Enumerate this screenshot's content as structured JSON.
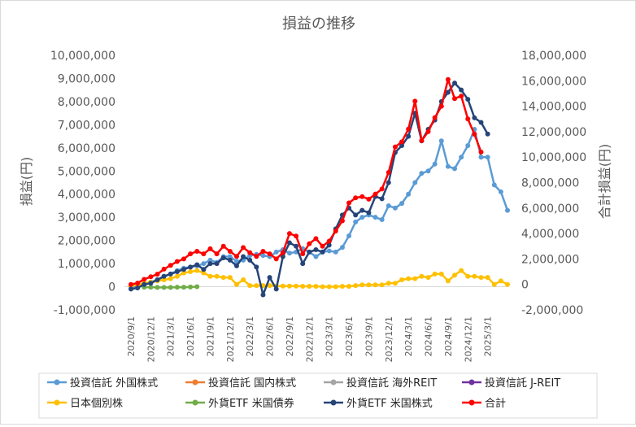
{
  "chart_data": {
    "type": "line",
    "title": "損益の推移",
    "ylabel": "損益(円)",
    "y2label": "合計損益(円)",
    "ylim": [
      -1000000,
      10000000
    ],
    "y2lim": [
      -2000000,
      18000000
    ],
    "yticks": [
      "-1,000,000",
      "0",
      "1,000,000",
      "2,000,000",
      "3,000,000",
      "4,000,000",
      "5,000,000",
      "6,000,000",
      "7,000,000",
      "8,000,000",
      "9,000,000",
      "10,000,000"
    ],
    "y2ticks": [
      "-2,000,000",
      "0",
      "2,000,000",
      "4,000,000",
      "6,000,000",
      "8,000,000",
      "10,000,000",
      "12,000,000",
      "14,000,000",
      "16,000,000",
      "18,000,000"
    ],
    "xticks": [
      "2020/9/1",
      "2020/12/1",
      "2021/3/1",
      "2021/6/1",
      "2021/9/1",
      "2021/12/1",
      "2022/3/1",
      "2022/6/1",
      "2022/9/1",
      "2022/12/1",
      "2023/3/1",
      "2023/6/1",
      "2023/9/1",
      "2023/12/1",
      "2024/3/1",
      "2024/6/1",
      "2024/9/1",
      "2024/12/1",
      "2025/3/1"
    ],
    "grid": false,
    "legend_position": "bottom",
    "series": [
      {
        "name": "投資信託 外国株式",
        "color": "#5b9bd5",
        "axis": "left",
        "points": [
          [
            "2020/9/1",
            0
          ],
          [
            "2020/10/1",
            30000
          ],
          [
            "2020/11/1",
            100000
          ],
          [
            "2020/12/1",
            200000
          ],
          [
            "2021/1/1",
            300000
          ],
          [
            "2021/2/1",
            450000
          ],
          [
            "2021/3/1",
            550000
          ],
          [
            "2021/4/1",
            700000
          ],
          [
            "2021/5/1",
            800000
          ],
          [
            "2021/6/1",
            850000
          ],
          [
            "2021/7/1",
            900000
          ],
          [
            "2021/8/1",
            1000000
          ],
          [
            "2021/9/1",
            1150000
          ],
          [
            "2021/10/1",
            1050000
          ],
          [
            "2021/11/1",
            1300000
          ],
          [
            "2021/12/1",
            1300000
          ],
          [
            "2022/1/1",
            1100000
          ],
          [
            "2022/2/1",
            1150000
          ],
          [
            "2022/3/1",
            1350000
          ],
          [
            "2022/4/1",
            1400000
          ],
          [
            "2022/5/1",
            1350000
          ],
          [
            "2022/6/1",
            1300000
          ],
          [
            "2022/7/1",
            1500000
          ],
          [
            "2022/8/1",
            1600000
          ],
          [
            "2022/9/1",
            1450000
          ],
          [
            "2022/10/1",
            1500000
          ],
          [
            "2022/11/1",
            1650000
          ],
          [
            "2022/12/1",
            1500000
          ],
          [
            "2023/1/1",
            1300000
          ],
          [
            "2023/2/1",
            1500000
          ],
          [
            "2023/3/1",
            1550000
          ],
          [
            "2023/4/1",
            1500000
          ],
          [
            "2023/5/1",
            1700000
          ],
          [
            "2023/6/1",
            2200000
          ],
          [
            "2023/7/1",
            2800000
          ],
          [
            "2023/8/1",
            3000000
          ],
          [
            "2023/9/1",
            3100000
          ],
          [
            "2023/10/1",
            3000000
          ],
          [
            "2023/11/1",
            2900000
          ],
          [
            "2023/12/1",
            3500000
          ],
          [
            "2024/1/1",
            3400000
          ],
          [
            "2024/2/1",
            3600000
          ],
          [
            "2024/3/1",
            4000000
          ],
          [
            "2024/4/1",
            4500000
          ],
          [
            "2024/5/1",
            4900000
          ],
          [
            "2024/6/1",
            5000000
          ],
          [
            "2024/7/1",
            5300000
          ],
          [
            "2024/8/1",
            6300000
          ],
          [
            "2024/9/1",
            5200000
          ],
          [
            "2024/10/1",
            5100000
          ],
          [
            "2024/11/1",
            5600000
          ],
          [
            "2024/12/1",
            6100000
          ],
          [
            "2025/1/1",
            6800000
          ],
          [
            "2025/2/1",
            5600000
          ],
          [
            "2025/3/1",
            5600000
          ],
          [
            "2025/4/1",
            4400000
          ],
          [
            "2025/5/1",
            4100000
          ],
          [
            "2025/6/1",
            3300000
          ]
        ]
      },
      {
        "name": "投資信託 国内株式",
        "color": "#ed7d31",
        "axis": "left",
        "points": []
      },
      {
        "name": "投資信託 海外REIT",
        "color": "#a5a5a5",
        "axis": "left",
        "points": []
      },
      {
        "name": "投資信託 J-REIT",
        "color": "#7030a0",
        "axis": "left",
        "points": []
      },
      {
        "name": "日本個別株",
        "color": "#ffc000",
        "axis": "left",
        "points": [
          [
            "2020/9/1",
            50000
          ],
          [
            "2020/10/1",
            80000
          ],
          [
            "2020/11/1",
            150000
          ],
          [
            "2020/12/1",
            200000
          ],
          [
            "2021/1/1",
            250000
          ],
          [
            "2021/2/1",
            300000
          ],
          [
            "2021/3/1",
            350000
          ],
          [
            "2021/4/1",
            450000
          ],
          [
            "2021/5/1",
            600000
          ],
          [
            "2021/6/1",
            650000
          ],
          [
            "2021/7/1",
            700000
          ],
          [
            "2021/8/1",
            600000
          ],
          [
            "2021/9/1",
            450000
          ],
          [
            "2021/10/1",
            450000
          ],
          [
            "2021/11/1",
            400000
          ],
          [
            "2021/12/1",
            400000
          ],
          [
            "2022/1/1",
            100000
          ],
          [
            "2022/2/1",
            300000
          ],
          [
            "2022/3/1",
            50000
          ],
          [
            "2022/4/1",
            50000
          ],
          [
            "2022/5/1",
            50000
          ],
          [
            "2022/6/1",
            50000
          ],
          [
            "2022/7/1",
            30000
          ],
          [
            "2022/8/1",
            30000
          ],
          [
            "2022/9/1",
            30000
          ],
          [
            "2022/10/1",
            30000
          ],
          [
            "2022/11/1",
            20000
          ],
          [
            "2022/12/1",
            20000
          ],
          [
            "2023/1/1",
            20000
          ],
          [
            "2023/2/1",
            0
          ],
          [
            "2023/3/1",
            0
          ],
          [
            "2023/4/1",
            0
          ],
          [
            "2023/5/1",
            20000
          ],
          [
            "2023/6/1",
            20000
          ],
          [
            "2023/7/1",
            50000
          ],
          [
            "2023/8/1",
            80000
          ],
          [
            "2023/9/1",
            80000
          ],
          [
            "2023/10/1",
            80000
          ],
          [
            "2023/11/1",
            80000
          ],
          [
            "2023/12/1",
            150000
          ],
          [
            "2024/1/1",
            150000
          ],
          [
            "2024/2/1",
            300000
          ],
          [
            "2024/3/1",
            350000
          ],
          [
            "2024/4/1",
            350000
          ],
          [
            "2024/5/1",
            450000
          ],
          [
            "2024/6/1",
            400000
          ],
          [
            "2024/7/1",
            550000
          ],
          [
            "2024/8/1",
            550000
          ],
          [
            "2024/9/1",
            250000
          ],
          [
            "2024/10/1",
            500000
          ],
          [
            "2024/11/1",
            700000
          ],
          [
            "2024/12/1",
            450000
          ],
          [
            "2025/1/1",
            450000
          ],
          [
            "2025/2/1",
            400000
          ],
          [
            "2025/3/1",
            400000
          ],
          [
            "2025/4/1",
            100000
          ],
          [
            "2025/5/1",
            250000
          ],
          [
            "2025/6/1",
            100000
          ]
        ]
      },
      {
        "name": "外貨ETF 米国債券",
        "color": "#70ad47",
        "axis": "left",
        "points": [
          [
            "2020/11/1",
            -20000
          ],
          [
            "2020/12/1",
            -20000
          ],
          [
            "2021/1/1",
            -30000
          ],
          [
            "2021/2/1",
            -30000
          ],
          [
            "2021/3/1",
            -30000
          ],
          [
            "2021/4/1",
            -20000
          ],
          [
            "2021/5/1",
            -20000
          ],
          [
            "2021/6/1",
            -10000
          ],
          [
            "2021/7/1",
            0
          ]
        ]
      },
      {
        "name": "外貨ETF 米国株式",
        "color": "#264478",
        "axis": "left",
        "points": [
          [
            "2020/9/1",
            -100000
          ],
          [
            "2020/10/1",
            -50000
          ],
          [
            "2020/11/1",
            100000
          ],
          [
            "2020/12/1",
            150000
          ],
          [
            "2021/1/1",
            300000
          ],
          [
            "2021/2/1",
            450000
          ],
          [
            "2021/3/1",
            550000
          ],
          [
            "2021/4/1",
            650000
          ],
          [
            "2021/5/1",
            750000
          ],
          [
            "2021/6/1",
            850000
          ],
          [
            "2021/7/1",
            950000
          ],
          [
            "2021/8/1",
            750000
          ],
          [
            "2021/9/1",
            1000000
          ],
          [
            "2021/10/1",
            1000000
          ],
          [
            "2021/11/1",
            1250000
          ],
          [
            "2021/12/1",
            1150000
          ],
          [
            "2022/1/1",
            900000
          ],
          [
            "2022/2/1",
            1300000
          ],
          [
            "2022/3/1",
            1150000
          ],
          [
            "2022/4/1",
            850000
          ],
          [
            "2022/5/1",
            -350000
          ],
          [
            "2022/6/1",
            400000
          ],
          [
            "2022/7/1",
            -100000
          ],
          [
            "2022/8/1",
            1300000
          ],
          [
            "2022/9/1",
            1900000
          ],
          [
            "2022/10/1",
            1750000
          ],
          [
            "2022/11/1",
            1000000
          ],
          [
            "2022/12/1",
            1500000
          ],
          [
            "2023/1/1",
            1600000
          ],
          [
            "2023/2/1",
            1500000
          ],
          [
            "2023/3/1",
            1800000
          ],
          [
            "2023/4/1",
            2500000
          ],
          [
            "2023/5/1",
            3100000
          ],
          [
            "2023/6/1",
            3400000
          ],
          [
            "2023/7/1",
            3100000
          ],
          [
            "2023/8/1",
            3300000
          ],
          [
            "2023/9/1",
            3200000
          ],
          [
            "2023/10/1",
            3900000
          ],
          [
            "2023/11/1",
            3800000
          ],
          [
            "2023/12/1",
            4500000
          ],
          [
            "2024/1/1",
            5800000
          ],
          [
            "2024/2/1",
            6100000
          ],
          [
            "2024/3/1",
            6500000
          ],
          [
            "2024/4/1",
            7500000
          ],
          [
            "2024/5/1",
            6300000
          ],
          [
            "2024/6/1",
            6800000
          ],
          [
            "2024/7/1",
            7200000
          ],
          [
            "2024/8/1",
            8000000
          ],
          [
            "2024/9/1",
            8400000
          ],
          [
            "2024/10/1",
            8800000
          ],
          [
            "2024/11/1",
            8500000
          ],
          [
            "2024/12/1",
            8100000
          ],
          [
            "2025/1/1",
            7300000
          ],
          [
            "2025/2/1",
            7100000
          ],
          [
            "2025/3/1",
            6600000
          ]
        ]
      },
      {
        "name": "合計",
        "color": "#ff0000",
        "axis": "right",
        "points": [
          [
            "2020/9/1",
            0
          ],
          [
            "2020/10/1",
            100000
          ],
          [
            "2020/11/1",
            400000
          ],
          [
            "2020/12/1",
            600000
          ],
          [
            "2021/1/1",
            800000
          ],
          [
            "2021/2/1",
            1200000
          ],
          [
            "2021/3/1",
            1500000
          ],
          [
            "2021/4/1",
            1800000
          ],
          [
            "2021/5/1",
            2000000
          ],
          [
            "2021/6/1",
            2400000
          ],
          [
            "2021/7/1",
            2600000
          ],
          [
            "2021/8/1",
            2400000
          ],
          [
            "2021/9/1",
            2800000
          ],
          [
            "2021/10/1",
            2400000
          ],
          [
            "2021/11/1",
            3000000
          ],
          [
            "2021/12/1",
            2600000
          ],
          [
            "2022/1/1",
            2200000
          ],
          [
            "2022/2/1",
            2900000
          ],
          [
            "2022/3/1",
            2500000
          ],
          [
            "2022/4/1",
            2200000
          ],
          [
            "2022/5/1",
            2600000
          ],
          [
            "2022/6/1",
            2400000
          ],
          [
            "2022/7/1",
            2000000
          ],
          [
            "2022/8/1",
            2500000
          ],
          [
            "2022/9/1",
            4000000
          ],
          [
            "2022/10/1",
            3800000
          ],
          [
            "2022/11/1",
            2400000
          ],
          [
            "2022/12/1",
            3200000
          ],
          [
            "2023/1/1",
            3600000
          ],
          [
            "2023/2/1",
            3000000
          ],
          [
            "2023/3/1",
            3400000
          ],
          [
            "2023/4/1",
            4200000
          ],
          [
            "2023/5/1",
            5000000
          ],
          [
            "2023/6/1",
            6400000
          ],
          [
            "2023/7/1",
            6800000
          ],
          [
            "2023/8/1",
            6900000
          ],
          [
            "2023/9/1",
            6700000
          ],
          [
            "2023/10/1",
            7100000
          ],
          [
            "2023/11/1",
            7500000
          ],
          [
            "2023/12/1",
            8800000
          ],
          [
            "2024/1/1",
            10800000
          ],
          [
            "2024/2/1",
            11200000
          ],
          [
            "2024/3/1",
            12200000
          ],
          [
            "2024/4/1",
            14400000
          ],
          [
            "2024/5/1",
            11300000
          ],
          [
            "2024/6/1",
            12000000
          ],
          [
            "2024/7/1",
            13100000
          ],
          [
            "2024/8/1",
            14000000
          ],
          [
            "2024/9/1",
            16100000
          ],
          [
            "2024/10/1",
            14600000
          ],
          [
            "2024/11/1",
            14800000
          ],
          [
            "2024/12/1",
            13000000
          ],
          [
            "2025/1/1",
            11800000
          ],
          [
            "2025/2/1",
            10400000
          ]
        ]
      }
    ]
  }
}
